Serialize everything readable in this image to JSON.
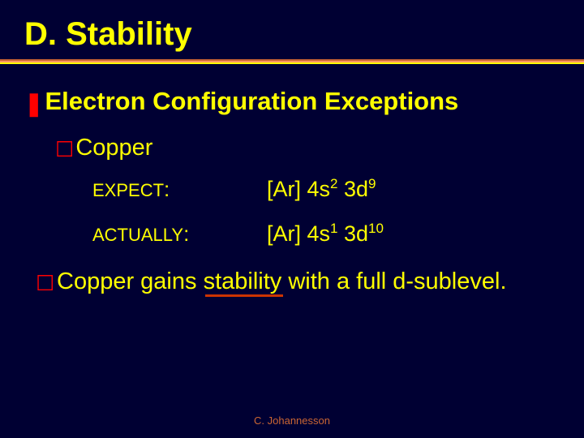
{
  "title": "D.  Stability",
  "ruleColors": {
    "top": "#cc6633",
    "mid": "#ff9966",
    "bot": "#ffff00"
  },
  "heading": "Electron Configuration Exceptions",
  "element": "Copper",
  "rows": [
    {
      "labelSmall": "EXPECT",
      "labelTail": ":",
      "prefix": "[Ar] 4s",
      "sup1": "2",
      "mid": " 3d",
      "sup2": "9"
    },
    {
      "labelSmall": "ACTUALLY",
      "labelTail": ":",
      "prefix": "[Ar] 4s",
      "sup1": "1",
      "mid": " 3d",
      "sup2": "10"
    }
  ],
  "conclusion": {
    "pre": "Copper gains ",
    "key": "stability",
    "post": " with a full d-sublevel."
  },
  "footer": "C. Johannesson",
  "glyphs": {
    "z": "❚",
    "y": "☐"
  }
}
